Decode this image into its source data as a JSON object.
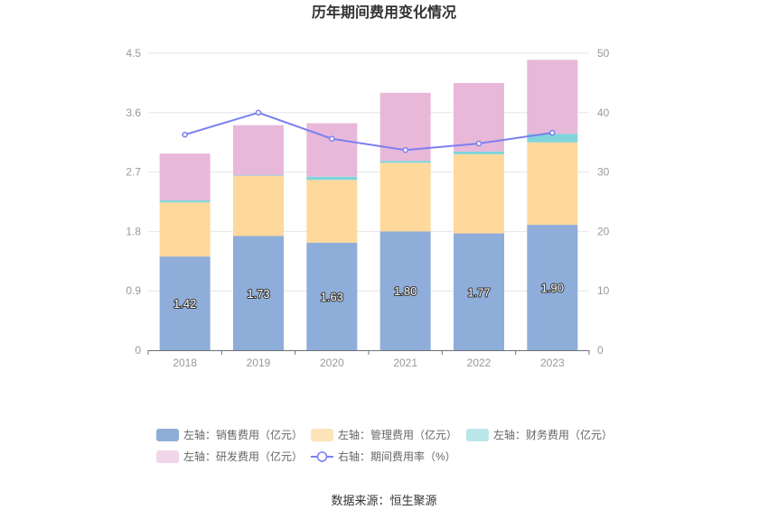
{
  "chart_data": {
    "type": "bar",
    "title": "历年期间费用变化情况",
    "categories": [
      "2018",
      "2019",
      "2020",
      "2021",
      "2022",
      "2023"
    ],
    "stacked": true,
    "series": [
      {
        "name": "左轴：销售费用（亿元）",
        "axis": "left",
        "color": "#8eadd9",
        "values": [
          1.42,
          1.73,
          1.63,
          1.8,
          1.77,
          1.9
        ],
        "labels": [
          "1.42",
          "1.73",
          "1.63",
          "1.80",
          "1.77",
          "1.90"
        ]
      },
      {
        "name": "左轴：管理费用（亿元）",
        "axis": "left",
        "color": "#ffd89c",
        "values": [
          0.82,
          0.91,
          0.95,
          1.04,
          1.2,
          1.25
        ]
      },
      {
        "name": "左轴：财务费用（亿元）",
        "axis": "left",
        "color": "#7fd5da",
        "values": [
          0.03,
          0.01,
          0.05,
          0.03,
          0.04,
          0.13
        ]
      },
      {
        "name": "左轴：研发费用（亿元）",
        "axis": "left",
        "color": "#e8b8d9",
        "values": [
          0.71,
          0.76,
          0.81,
          1.03,
          1.04,
          1.12
        ]
      },
      {
        "name": "右轴：期间费用率（%）",
        "axis": "right",
        "type": "line",
        "color": "#7b7ff0",
        "values": [
          36.3,
          40.0,
          35.6,
          33.7,
          34.8,
          36.6
        ]
      }
    ],
    "y_left": {
      "min": 0,
      "max": 4.5,
      "ticks": [
        "0",
        "0.9",
        "1.8",
        "2.7",
        "3.6",
        "4.5"
      ]
    },
    "y_right": {
      "min": 0,
      "max": 50,
      "ticks": [
        "0",
        "10",
        "20",
        "30",
        "40",
        "50"
      ]
    },
    "grid": true,
    "legend_position": "bottom",
    "legend_colors": [
      "#8eadd9",
      "#fde3b8",
      "#b9e6e8",
      "#f1d6ea"
    ],
    "source": "数据来源：恒生聚源"
  }
}
